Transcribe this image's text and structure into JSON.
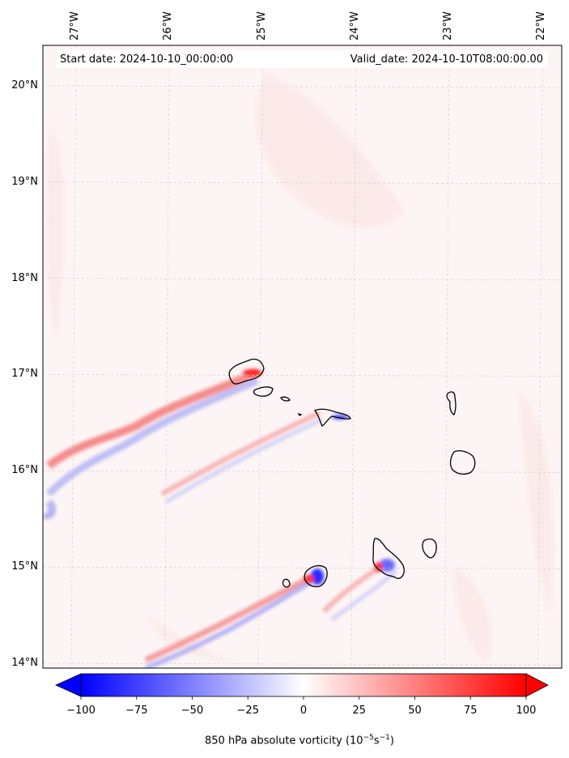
{
  "map": {
    "title_left": "Start date: 2024-10-10_00:00:00",
    "title_right": "Valid_date: 2024-10-10T08:00:00.00",
    "extent": {
      "lon_min": -27.33,
      "lon_max": -21.77,
      "lat_min": 13.95,
      "lat_max": 20.42
    },
    "lat_ticks": [
      {
        "value": 20,
        "label": "20°N"
      },
      {
        "value": 19,
        "label": "19°N"
      },
      {
        "value": 18,
        "label": "18°N"
      },
      {
        "value": 17,
        "label": "17°N"
      },
      {
        "value": 16,
        "label": "16°N"
      },
      {
        "value": 15,
        "label": "15°N"
      },
      {
        "value": 14,
        "label": "14°N"
      }
    ],
    "lon_ticks": [
      {
        "value": -27,
        "label": "27°W"
      },
      {
        "value": -26,
        "label": "26°W"
      },
      {
        "value": -25,
        "label": "25°W"
      },
      {
        "value": -24,
        "label": "24°W"
      },
      {
        "value": -23,
        "label": "23°W"
      },
      {
        "value": -22,
        "label": "22°W"
      }
    ],
    "gridlines": true,
    "field": "850 hPa absolute vorticity",
    "islands": [
      "Santo Antão",
      "São Vicente",
      "Santa Luzia",
      "São Nicolau",
      "Sal",
      "Boa Vista",
      "Brava",
      "Fogo",
      "Santiago",
      "Maio"
    ],
    "colors": {
      "negative": "#0000ff",
      "zero": "#ffffff",
      "positive": "#ff0000",
      "background_weak_positive": "#fdf3f3"
    }
  },
  "colorbar": {
    "ticks": [
      "−100",
      "−75",
      "−50",
      "−25",
      "0",
      "25",
      "50",
      "75",
      "100"
    ],
    "tick_values": [
      -100,
      -75,
      -50,
      -25,
      0,
      25,
      50,
      75,
      100
    ],
    "label_main": "850 hPa absolute vorticity (10",
    "label_exp1": "−5",
    "label_mid": "s",
    "label_exp2": "−1",
    "label_end": ")",
    "extend": "both"
  }
}
